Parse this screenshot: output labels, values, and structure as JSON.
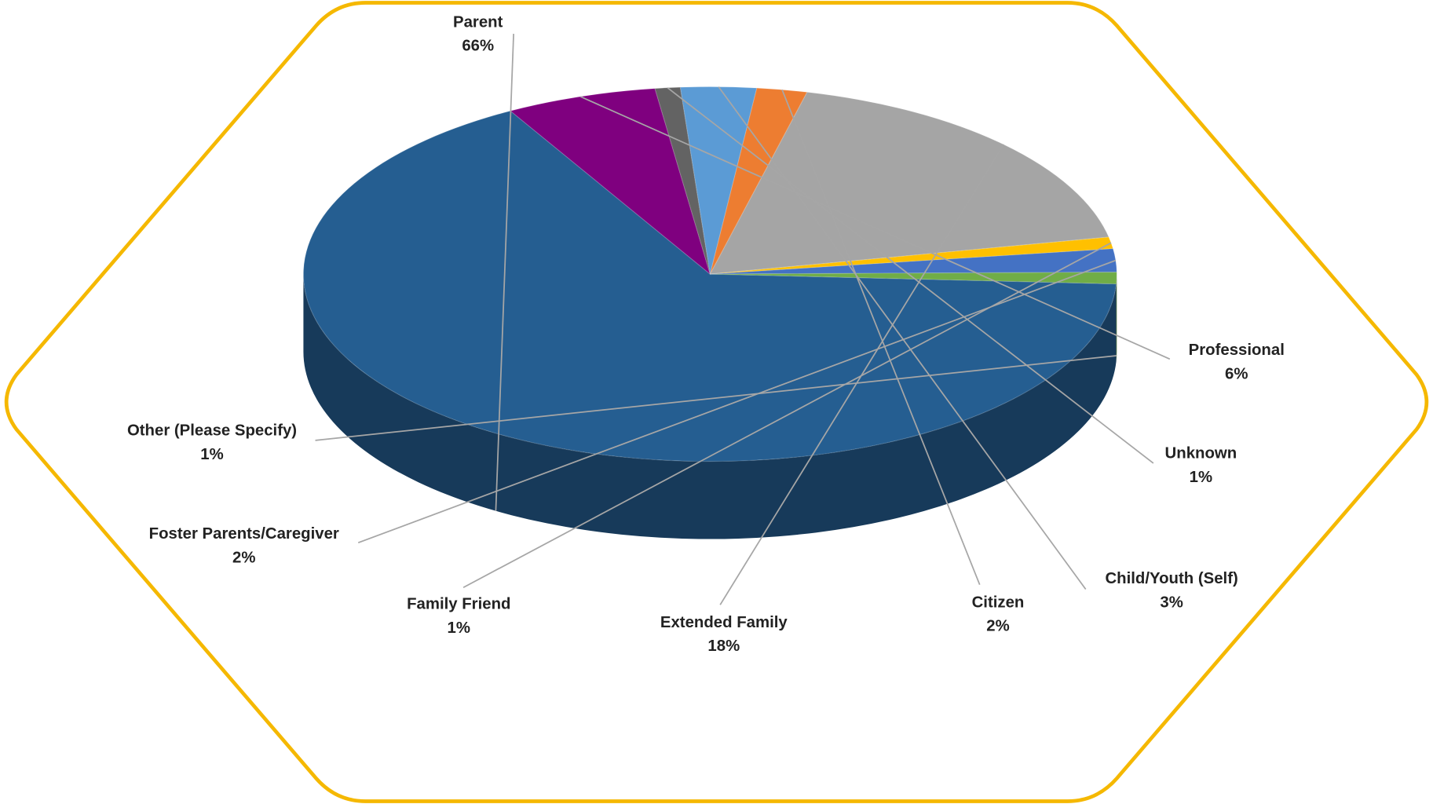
{
  "chart_data": {
    "type": "pie",
    "categories": [
      "Parent",
      "Professional",
      "Unknown",
      "Child/Youth (Self)",
      "Citizen",
      "Extended Family",
      "Family Friend",
      "Foster Parents/Caregiver",
      "Other (Please Specify)"
    ],
    "values": [
      66,
      6,
      1,
      3,
      2,
      18,
      1,
      2,
      1
    ],
    "value_labels": [
      "66%",
      "6%",
      "1%",
      "3%",
      "2%",
      "18%",
      "1%",
      "2%",
      "1%"
    ],
    "colors": [
      "#255e91",
      "#7f007f",
      "#636363",
      "#5b9bd5",
      "#ed7d31",
      "#a5a5a5",
      "#ffc000",
      "#4472c4",
      "#70ad47"
    ]
  }
}
